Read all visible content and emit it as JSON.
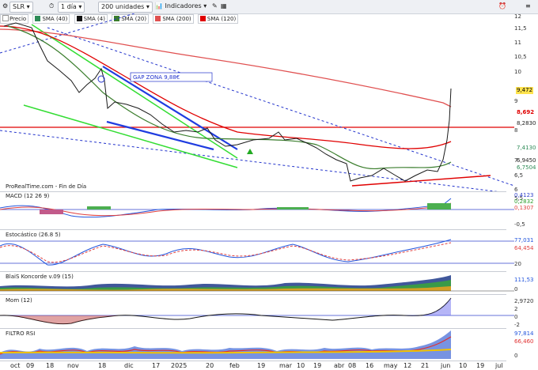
{
  "toolbar": {
    "symbol": "SLR",
    "period": "1 día",
    "units": "200 unidades",
    "indicators": "Indicadores"
  },
  "legend": [
    {
      "label": "Precio",
      "color": "#1a1a1a"
    },
    {
      "label": "SMA (40)",
      "color": "#2e8b57"
    },
    {
      "label": "SMA (4)",
      "color": "#111111"
    },
    {
      "label": "SMA (20)",
      "color": "#3a7d2c"
    },
    {
      "label": "SMA (200)",
      "color": "#e05050"
    },
    {
      "label": "SMA (120)",
      "color": "#e00000"
    }
  ],
  "main": {
    "annotation": "GAP ZONA 9,88€",
    "credit": "ProRealTime.com - Fin de Día",
    "y_ticks": [
      "12",
      "11,5",
      "11",
      "10,5",
      "10",
      "9",
      "8",
      "7",
      "6,5",
      "6",
      "5,5"
    ],
    "tags": [
      {
        "text": "9,472",
        "bg": "#ffe34d",
        "color": "#000"
      },
      {
        "text": "8,692",
        "bg": "#fff",
        "color": "#e00000"
      },
      {
        "text": "8,2830",
        "bg": "#fff",
        "color": "#333"
      },
      {
        "text": "7,4130",
        "bg": "#fff",
        "color": "#2e8b57"
      },
      {
        "text": "6,9450",
        "bg": "#fff",
        "color": "#333"
      },
      {
        "text": "6,7504",
        "bg": "#fff",
        "color": "#2e8b57"
      }
    ]
  },
  "macd": {
    "label": "MACD (12 26 9)",
    "ticks": [
      "0,4123",
      "0,2832",
      "0,1307",
      "-0,5"
    ]
  },
  "stoch": {
    "label": "Estocástico (26.8 5)",
    "ticks": [
      "77,031",
      "64,454",
      "20"
    ]
  },
  "koncorde": {
    "label": "BlaiS Koncorde v.09 (15)",
    "ticks": [
      "111,53",
      "0"
    ]
  },
  "mom": {
    "label": "Mom (12)",
    "ticks": [
      "2,9720",
      "2",
      "0",
      "-2"
    ]
  },
  "rsi": {
    "label": "FILTRO RSI",
    "ticks": [
      "97,814",
      "66,460",
      "0"
    ]
  },
  "x_axis": [
    "oct",
    "09",
    "18",
    "nov",
    "18",
    "dic",
    "17",
    "2025",
    "20",
    "feb",
    "19",
    "mar",
    "10",
    "19",
    "abr",
    "08",
    "16",
    "may",
    "12",
    "21",
    "jun",
    "10",
    "19",
    "jul"
  ],
  "chart_data": {
    "type": "line",
    "title": "SLR",
    "x": [
      "oct",
      "nov",
      "dic",
      "2025",
      "feb",
      "mar",
      "abr",
      "may",
      "jun"
    ],
    "series": [
      {
        "name": "Precio",
        "values": [
          11.6,
          9.4,
          8.3,
          8.0,
          7.3,
          7.4,
          6.2,
          6.6,
          9.47
        ]
      },
      {
        "name": "SMA (200)",
        "values": [
          11.9,
          11.1,
          10.6,
          10.3,
          10.0,
          9.7,
          9.3,
          8.9,
          8.69
        ]
      },
      {
        "name": "SMA (120)",
        "values": [
          11.7,
          10.2,
          9.2,
          8.4,
          7.9,
          7.7,
          7.3,
          7.1,
          7.41
        ]
      },
      {
        "name": "SMA (40)",
        "values": [
          11.5,
          9.6,
          8.4,
          7.8,
          7.4,
          7.3,
          6.5,
          6.7,
          6.75
        ]
      }
    ],
    "ylim": [
      5.5,
      12
    ]
  }
}
